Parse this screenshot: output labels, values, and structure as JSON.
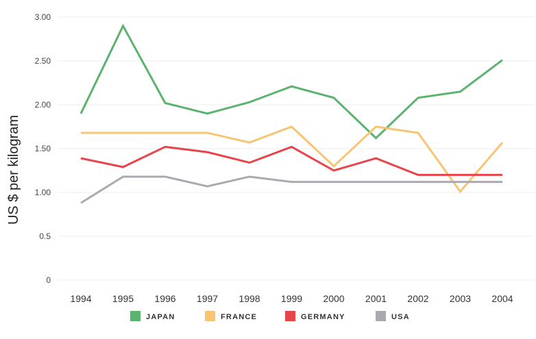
{
  "chart_data": {
    "type": "line",
    "title": "",
    "xlabel": "",
    "ylabel": "US $ per kilogram",
    "ylim": [
      0,
      3
    ],
    "yticks": [
      {
        "value": 0,
        "label": "0"
      },
      {
        "value": 0.5,
        "label": "0.5"
      },
      {
        "value": 1,
        "label": "1.00"
      },
      {
        "value": 1.5,
        "label": "1.50"
      },
      {
        "value": 2,
        "label": "2.00"
      },
      {
        "value": 2.5,
        "label": "2.50"
      },
      {
        "value": 3,
        "label": "3.00"
      }
    ],
    "categories": [
      "1994",
      "1995",
      "1996",
      "1997",
      "1998",
      "1999",
      "2000",
      "2001",
      "2002",
      "2003",
      "2004"
    ],
    "grid": true,
    "legend_position": "bottom",
    "series": [
      {
        "name": "JAPAN",
        "color": "#5bb36e",
        "values": [
          1.9,
          2.9,
          2.02,
          1.9,
          2.03,
          2.21,
          2.08,
          1.62,
          2.08,
          2.15,
          2.51
        ]
      },
      {
        "name": "FRANCE",
        "color": "#f8c471",
        "values": [
          1.68,
          1.68,
          1.68,
          1.68,
          1.57,
          1.75,
          1.3,
          1.75,
          1.68,
          1.01,
          1.57
        ]
      },
      {
        "name": "GERMANY",
        "color": "#e8454a",
        "values": [
          1.39,
          1.29,
          1.52,
          1.46,
          1.34,
          1.52,
          1.25,
          1.39,
          1.2,
          1.2,
          1.2
        ]
      },
      {
        "name": "USA",
        "color": "#aaa9b0",
        "values": [
          0.88,
          1.18,
          1.18,
          1.07,
          1.18,
          1.12,
          1.12,
          1.12,
          1.12,
          1.12,
          1.12
        ]
      }
    ]
  }
}
